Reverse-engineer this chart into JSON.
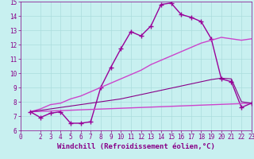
{
  "xlim": [
    0,
    23
  ],
  "ylim": [
    6,
    15
  ],
  "xticks": [
    0,
    2,
    3,
    4,
    5,
    6,
    7,
    8,
    9,
    10,
    11,
    12,
    13,
    14,
    15,
    16,
    17,
    18,
    19,
    20,
    21,
    22,
    23
  ],
  "yticks": [
    6,
    7,
    8,
    9,
    10,
    11,
    12,
    13,
    14,
    15
  ],
  "bg_color": "#c8f0f0",
  "lines": [
    {
      "x": [
        1,
        2,
        3,
        4,
        5,
        6,
        7,
        8,
        9,
        10,
        11,
        12,
        13,
        14,
        15,
        16,
        17,
        18,
        19,
        20,
        21,
        22,
        23
      ],
      "y": [
        7.3,
        6.9,
        7.2,
        7.3,
        6.5,
        6.5,
        6.6,
        9.0,
        10.4,
        11.7,
        12.9,
        12.6,
        13.3,
        14.8,
        14.9,
        14.1,
        13.9,
        13.6,
        12.4,
        9.6,
        9.4,
        7.6,
        7.9
      ],
      "color": "#990099",
      "marker": "+",
      "markersize": 4,
      "linewidth": 1.0
    },
    {
      "x": [
        1,
        2,
        3,
        4,
        5,
        6,
        7,
        8,
        9,
        10,
        11,
        12,
        13,
        14,
        15,
        16,
        17,
        18,
        19,
        20,
        21,
        22,
        23
      ],
      "y": [
        7.3,
        7.5,
        7.8,
        7.9,
        8.2,
        8.4,
        8.7,
        9.0,
        9.3,
        9.6,
        9.9,
        10.2,
        10.6,
        10.9,
        11.2,
        11.5,
        11.8,
        12.1,
        12.3,
        12.5,
        12.4,
        12.3,
        12.4
      ],
      "color": "#cc44cc",
      "marker": "",
      "markersize": 0,
      "linewidth": 1.0
    },
    {
      "x": [
        1,
        23
      ],
      "y": [
        7.3,
        7.9
      ],
      "color": "#cc44cc",
      "marker": "",
      "markersize": 0,
      "linewidth": 1.0
    },
    {
      "x": [
        1,
        2,
        3,
        4,
        5,
        6,
        7,
        8,
        9,
        10,
        11,
        12,
        13,
        14,
        15,
        16,
        17,
        18,
        19,
        20,
        21,
        22,
        23
      ],
      "y": [
        7.3,
        7.4,
        7.5,
        7.6,
        7.7,
        7.8,
        7.9,
        8.0,
        8.1,
        8.2,
        8.35,
        8.5,
        8.65,
        8.8,
        8.95,
        9.1,
        9.25,
        9.4,
        9.55,
        9.65,
        9.6,
        8.0,
        7.9
      ],
      "color": "#880088",
      "marker": "",
      "markersize": 0,
      "linewidth": 0.8
    }
  ],
  "grid_color": "#aadddd",
  "tick_color": "#880088",
  "tick_fontsize": 5.5,
  "xlabel": "Windchill (Refroidissement éolien,°C)",
  "xlabel_fontsize": 6.5,
  "xlabel_color": "#880088"
}
